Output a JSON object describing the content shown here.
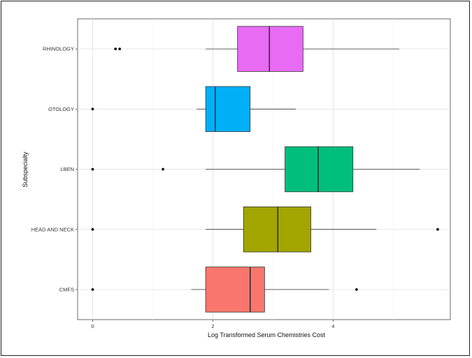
{
  "chart_data": {
    "type": "boxplot",
    "orientation": "horizontal",
    "xlabel": "Log Transformed Serum Chemistries Cost",
    "ylabel": "Subspecialty",
    "xlim": [
      -0.25,
      5.95
    ],
    "x_ticks": [
      0,
      2,
      4
    ],
    "grid": true,
    "categories": [
      "CMFS",
      "HEAD AND NECK",
      "LBEN",
      "OTOLOGY",
      "RHINOLOGY"
    ],
    "boxes": [
      {
        "category": "CMFS",
        "whisker_low": 1.64,
        "q1": 1.88,
        "median": 2.62,
        "q3": 2.86,
        "whisker_high": 3.93,
        "outliers": [
          0,
          4.39
        ],
        "color": "#F8766D"
      },
      {
        "category": "HEAD AND NECK",
        "whisker_low": 1.88,
        "q1": 2.51,
        "median": 3.08,
        "q3": 3.63,
        "whisker_high": 4.72,
        "outliers": [
          0,
          5.74
        ],
        "color": "#A3A500"
      },
      {
        "category": "LBEN",
        "whisker_low": 1.88,
        "q1": 3.2,
        "median": 3.75,
        "q3": 4.33,
        "whisker_high": 5.44,
        "outliers": [
          0,
          1.17
        ],
        "color": "#00BF7D"
      },
      {
        "category": "OTOLOGY",
        "whisker_low": 1.73,
        "q1": 1.88,
        "median": 2.04,
        "q3": 2.62,
        "whisker_high": 3.38,
        "outliers": [
          0
        ],
        "color": "#00B0F6"
      },
      {
        "category": "RHINOLOGY",
        "whisker_low": 1.88,
        "q1": 2.41,
        "median": 2.94,
        "q3": 3.5,
        "whisker_high": 5.1,
        "outliers": [
          0.38,
          0.45
        ],
        "color": "#E76BF3"
      }
    ]
  }
}
